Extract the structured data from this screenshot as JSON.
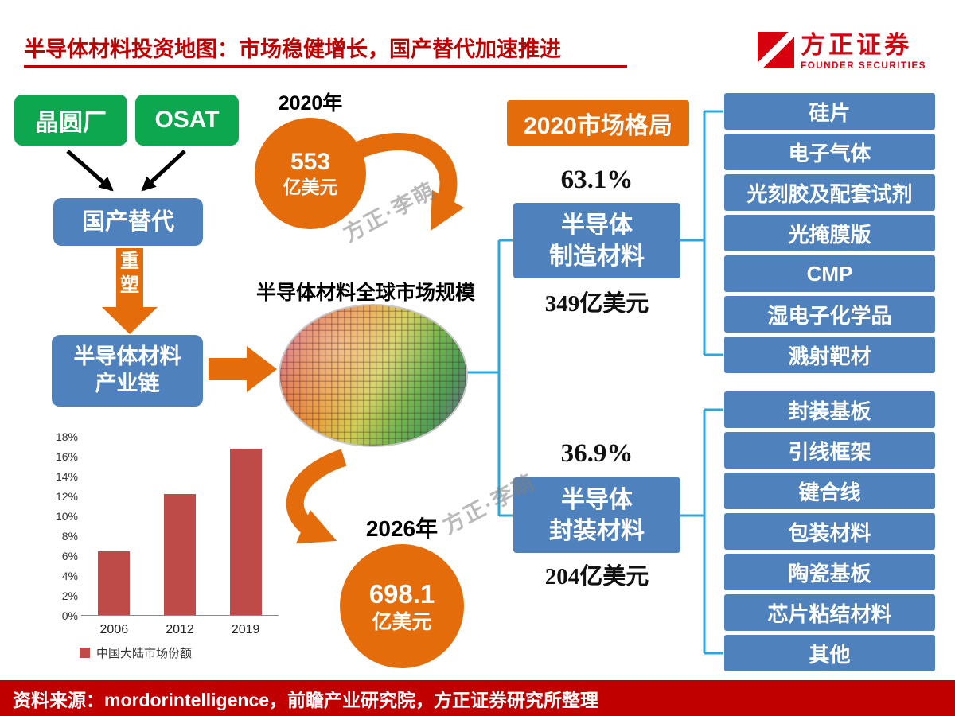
{
  "title": "半导体材料投资地图：市场稳健增长，国产替代加速推进",
  "logo": {
    "brand": "方正证券",
    "sub": "FOUNDER SECURITIES"
  },
  "watermark": {
    "text": "方正·李萌"
  },
  "flow": {
    "fab": "晶圆厂",
    "osat": "OSAT",
    "substitute": "国产替代",
    "reshape_1": "重",
    "reshape_2": "塑",
    "chain_1": "半导体材料",
    "chain_2": "产业链"
  },
  "global_market": {
    "label": "半导体材料全球市场规模",
    "y2020": {
      "year": "2020年",
      "value": "553",
      "unit": "亿美元"
    },
    "y2026": {
      "year": "2026年",
      "value": "698.1",
      "unit": "亿美元"
    }
  },
  "chart_data": {
    "type": "bar",
    "title": "",
    "categories": [
      "2006",
      "2012",
      "2019"
    ],
    "values": [
      6.4,
      12.2,
      16.7
    ],
    "unit": "%",
    "ylim": [
      0,
      18
    ],
    "ytick_step": 2,
    "bar_color": "#be4b48",
    "legend": "中国大陆市场份额",
    "grid": false,
    "legend_position": "bottom"
  },
  "structure": {
    "header": "2020市场格局",
    "manufacturing": {
      "share": "63.1%",
      "name_1": "半导体",
      "name_2": "制造材料",
      "value": "349亿美元",
      "items": [
        "硅片",
        "电子气体",
        "光刻胶及配套试剂",
        "光掩膜版",
        "CMP",
        "湿电子化学品",
        "溅射靶材"
      ]
    },
    "packaging": {
      "share": "36.9%",
      "name_1": "半导体",
      "name_2": "封装材料",
      "value": "204亿美元",
      "items": [
        "封装基板",
        "引线框架",
        "键合线",
        "包装材料",
        "陶瓷基板",
        "芯片粘结材料",
        "其他"
      ]
    }
  },
  "source": "资料来源：mordorintelligence，前瞻产业研究院，方正证券研究所整理",
  "colors": {
    "accent_red": "#c00000",
    "green": "#0ca74e",
    "blue": "#4f81bd",
    "orange": "#e46c0a",
    "connector": "#29a7de",
    "bar": "#be4b48"
  }
}
